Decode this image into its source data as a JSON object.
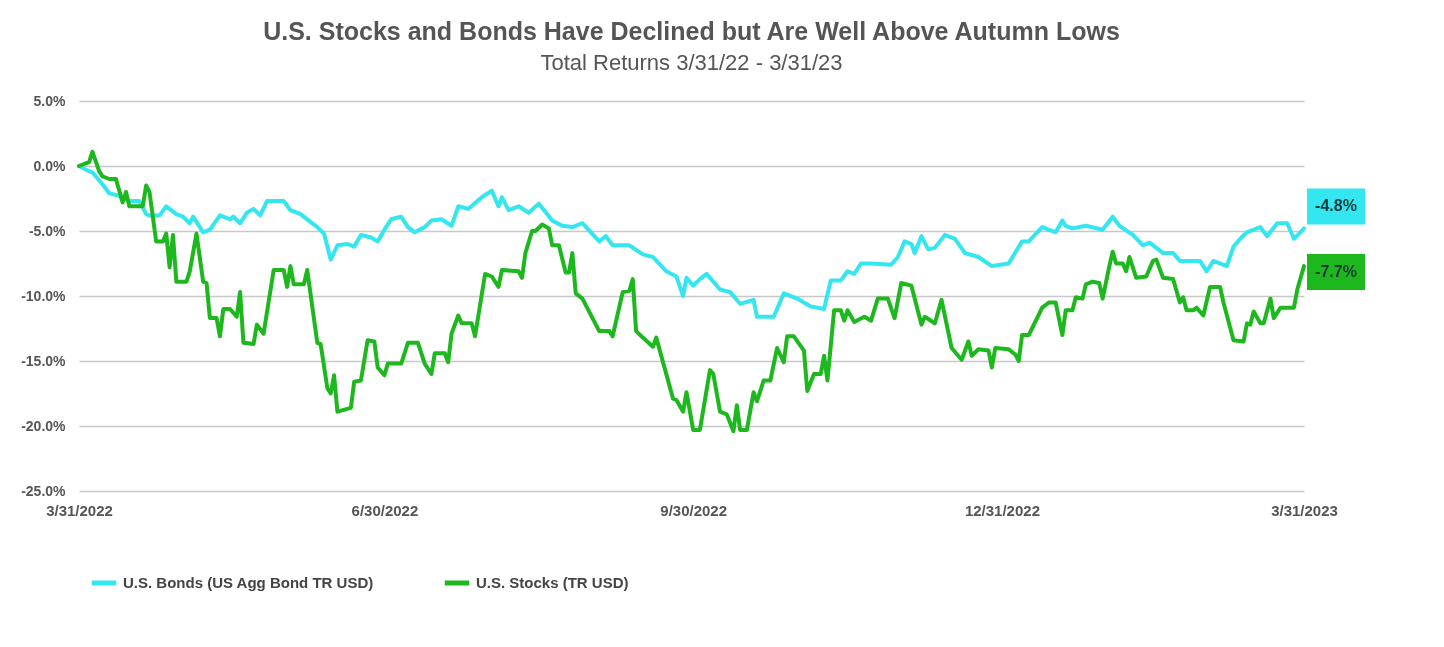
{
  "chart_data": {
    "type": "line",
    "title": "U.S. Stocks and Bonds Have Declined but Are Well Above Autumn Lows",
    "subtitle": "Total Returns 3/31/22 - 3/31/23",
    "xlim": [
      "2022-03-31",
      "2023-03-31"
    ],
    "xticks": [
      {
        "value": "2022-03-31",
        "label": "3/31/2022"
      },
      {
        "value": "2022-06-30",
        "label": "6/30/2022"
      },
      {
        "value": "2022-09-30",
        "label": "9/30/2022"
      },
      {
        "value": "2022-12-31",
        "label": "12/31/2022"
      },
      {
        "value": "2023-03-31",
        "label": "3/31/2023"
      }
    ],
    "ylim": [
      -25,
      5
    ],
    "yticks": [
      {
        "value": -25,
        "label": "-25.0%"
      },
      {
        "value": -20,
        "label": "-20.0%"
      },
      {
        "value": -15,
        "label": "-15.0%"
      },
      {
        "value": -10,
        "label": "-10.0%"
      },
      {
        "value": -5,
        "label": "-5.0%"
      },
      {
        "value": 0,
        "label": "0.0%"
      },
      {
        "value": 5,
        "label": "5.0%"
      }
    ],
    "grid": "y",
    "legend": "bottom",
    "annotations": [
      {
        "text": "-4.8%",
        "x": "2023-03-31",
        "y": -4.8
      },
      {
        "text": "-7.7%",
        "x": "2023-03-31",
        "y": -7.7
      }
    ],
    "series": [
      {
        "name": "U.S. Bonds (US Agg Bond TR USD)",
        "color": "#33e6f0",
        "x": [
          "2022-03-31",
          "2022-04-03",
          "2022-04-04",
          "2022-04-07",
          "2022-04-09",
          "2022-04-12",
          "2022-04-15",
          "2022-04-18",
          "2022-04-20",
          "2022-04-21",
          "2022-04-24",
          "2022-04-26",
          "2022-04-29",
          "2022-05-01",
          "2022-05-03",
          "2022-05-04",
          "2022-05-07",
          "2022-05-09",
          "2022-05-12",
          "2022-05-15",
          "2022-05-16",
          "2022-05-18",
          "2022-05-20",
          "2022-05-22",
          "2022-05-24",
          "2022-05-26",
          "2022-05-31",
          "2022-06-02",
          "2022-06-05",
          "2022-06-07",
          "2022-06-10",
          "2022-06-12",
          "2022-06-14",
          "2022-06-16",
          "2022-06-19",
          "2022-06-21",
          "2022-06-23",
          "2022-06-26",
          "2022-06-28",
          "2022-06-30",
          "2022-07-02",
          "2022-07-05",
          "2022-07-07",
          "2022-07-09",
          "2022-07-12",
          "2022-07-14",
          "2022-07-17",
          "2022-07-20",
          "2022-07-22",
          "2022-07-25",
          "2022-07-29",
          "2022-08-01",
          "2022-08-03",
          "2022-08-04",
          "2022-08-06",
          "2022-08-09",
          "2022-08-12",
          "2022-08-15",
          "2022-08-19",
          "2022-08-22",
          "2022-08-25",
          "2022-08-28",
          "2022-09-02",
          "2022-09-04",
          "2022-09-06",
          "2022-09-11",
          "2022-09-15",
          "2022-09-18",
          "2022-09-22",
          "2022-09-25",
          "2022-09-27",
          "2022-09-28",
          "2022-09-30",
          "2022-10-02",
          "2022-10-04",
          "2022-10-08",
          "2022-10-11",
          "2022-10-14",
          "2022-10-18",
          "2022-10-19",
          "2022-10-24",
          "2022-10-27",
          "2022-10-31",
          "2022-11-04",
          "2022-11-08",
          "2022-11-10",
          "2022-11-13",
          "2022-11-15",
          "2022-11-17",
          "2022-11-19",
          "2022-11-22",
          "2022-11-28",
          "2022-11-30",
          "2022-12-02",
          "2022-12-04",
          "2022-12-05",
          "2022-12-07",
          "2022-12-09",
          "2022-12-11",
          "2022-12-14",
          "2022-12-17",
          "2022-12-20",
          "2022-12-24",
          "2022-12-28",
          "2023-01-02",
          "2023-01-06",
          "2023-01-08",
          "2023-01-12",
          "2023-01-16",
          "2023-01-18",
          "2023-01-19",
          "2023-01-21",
          "2023-01-25",
          "2023-01-30",
          "2023-02-02",
          "2023-02-04",
          "2023-02-08",
          "2023-02-11",
          "2023-02-13",
          "2023-02-17",
          "2023-02-20",
          "2023-02-22",
          "2023-02-28",
          "2023-03-02",
          "2023-03-04",
          "2023-03-08",
          "2023-03-10",
          "2023-03-12",
          "2023-03-14",
          "2023-03-18",
          "2023-03-20",
          "2023-03-23",
          "2023-03-26",
          "2023-03-28",
          "2023-03-31"
        ],
        "values": [
          0,
          -0.4,
          -0.5,
          -1.4,
          -2.1,
          -2.3,
          -2.7,
          -2.7,
          -3.7,
          -3.8,
          -3.8,
          -3.1,
          -3.7,
          -3.9,
          -4.4,
          -3.9,
          -5.1,
          -4.9,
          -3.8,
          -4.1,
          -3.9,
          -4.4,
          -3.6,
          -3.3,
          -3.8,
          -2.7,
          -2.7,
          -3.4,
          -3.7,
          -4.1,
          -4.7,
          -5.2,
          -7.2,
          -6.1,
          -6.0,
          -6.2,
          -5.3,
          -5.5,
          -5.8,
          -4.9,
          -4.1,
          -3.9,
          -4.7,
          -5.1,
          -4.7,
          -4.2,
          -4.1,
          -4.6,
          -3.1,
          -3.3,
          -2.4,
          -1.9,
          -3.1,
          -2.4,
          -3.4,
          -3.1,
          -3.6,
          -2.9,
          -4.2,
          -4.6,
          -4.7,
          -4.4,
          -5.8,
          -5.4,
          -6.1,
          -6.1,
          -6.8,
          -7.0,
          -8.1,
          -8.5,
          -10.0,
          -8.6,
          -9.2,
          -8.7,
          -8.3,
          -9.5,
          -9.7,
          -10.6,
          -10.3,
          -11.6,
          -11.6,
          -9.8,
          -10.2,
          -10.8,
          -11.0,
          -8.8,
          -8.8,
          -8.1,
          -8.3,
          -7.5,
          -7.5,
          -7.6,
          -7.0,
          -5.8,
          -6.0,
          -6.7,
          -5.4,
          -6.4,
          -6.3,
          -5.3,
          -5.6,
          -6.7,
          -7.0,
          -7.7,
          -7.5,
          -5.8,
          -5.8,
          -4.7,
          -5.1,
          -4.2,
          -4.6,
          -4.8,
          -4.6,
          -4.9,
          -3.9,
          -4.6,
          -5.3,
          -6.1,
          -5.9,
          -6.7,
          -6.7,
          -7.3,
          -7.3,
          -8.1,
          -7.3,
          -7.7,
          -6.2,
          -5.6,
          -5.1,
          -4.7,
          -5.4,
          -4.4,
          -4.4,
          -5.6,
          -4.8
        ]
      },
      {
        "name": "U.S. Stocks (TR USD)",
        "color": "#1db81d",
        "x": [
          "2022-03-31",
          "2022-04-02",
          "2022-04-03",
          "2022-04-04",
          "2022-04-06",
          "2022-04-07",
          "2022-04-09",
          "2022-04-11",
          "2022-04-13",
          "2022-04-14",
          "2022-04-15",
          "2022-04-19",
          "2022-04-20",
          "2022-04-21",
          "2022-04-23",
          "2022-04-25",
          "2022-04-26",
          "2022-04-27",
          "2022-04-28",
          "2022-04-29",
          "2022-05-02",
          "2022-05-03",
          "2022-05-05",
          "2022-05-07",
          "2022-05-08",
          "2022-05-09",
          "2022-05-11",
          "2022-05-12",
          "2022-05-13",
          "2022-05-15",
          "2022-05-17",
          "2022-05-18",
          "2022-05-19",
          "2022-05-22",
          "2022-05-23",
          "2022-05-25",
          "2022-05-28",
          "2022-05-31",
          "2022-06-01",
          "2022-06-02",
          "2022-06-03",
          "2022-06-06",
          "2022-06-07",
          "2022-06-10",
          "2022-06-11",
          "2022-06-13",
          "2022-06-14",
          "2022-06-15",
          "2022-06-16",
          "2022-06-20",
          "2022-06-21",
          "2022-06-23",
          "2022-06-25",
          "2022-06-27",
          "2022-06-28",
          "2022-06-30",
          "2022-07-01",
          "2022-07-05",
          "2022-07-07",
          "2022-07-10",
          "2022-07-12",
          "2022-07-14",
          "2022-07-15",
          "2022-07-18",
          "2022-07-19",
          "2022-07-20",
          "2022-07-22",
          "2022-07-23",
          "2022-07-26",
          "2022-07-27",
          "2022-07-30",
          "2022-08-01",
          "2022-08-03",
          "2022-08-04",
          "2022-08-09",
          "2022-08-10",
          "2022-08-11",
          "2022-08-13",
          "2022-08-14",
          "2022-08-16",
          "2022-08-18",
          "2022-08-19",
          "2022-08-21",
          "2022-08-23",
          "2022-08-24",
          "2022-08-25",
          "2022-08-26",
          "2022-08-28",
          "2022-08-31",
          "2022-09-02",
          "2022-09-05",
          "2022-09-06",
          "2022-09-09",
          "2022-09-11",
          "2022-09-12",
          "2022-09-13",
          "2022-09-15",
          "2022-09-18",
          "2022-09-19",
          "2022-09-24",
          "2022-09-25",
          "2022-09-27",
          "2022-09-28",
          "2022-09-30",
          "2022-10-02",
          "2022-10-05",
          "2022-10-06",
          "2022-10-08",
          "2022-10-10",
          "2022-10-12",
          "2022-10-13",
          "2022-10-14",
          "2022-10-16",
          "2022-10-18",
          "2022-10-19",
          "2022-10-21",
          "2022-10-23",
          "2022-10-25",
          "2022-10-27",
          "2022-10-28",
          "2022-10-30",
          "2022-11-02",
          "2022-11-03",
          "2022-11-05",
          "2022-11-07",
          "2022-11-08",
          "2022-11-09",
          "2022-11-11",
          "2022-11-13",
          "2022-11-14",
          "2022-11-15",
          "2022-11-17",
          "2022-11-20",
          "2022-11-22",
          "2022-11-24",
          "2022-11-27",
          "2022-11-29",
          "2022-12-01",
          "2022-12-04",
          "2022-12-07",
          "2022-12-08",
          "2022-12-11",
          "2022-12-13",
          "2022-12-16",
          "2022-12-19",
          "2022-12-21",
          "2022-12-22",
          "2022-12-24",
          "2022-12-27",
          "2022-12-28",
          "2022-12-29",
          "2023-01-02",
          "2023-01-04",
          "2023-01-05",
          "2023-01-06",
          "2023-01-08",
          "2023-01-12",
          "2023-01-14",
          "2023-01-16",
          "2023-01-18",
          "2023-01-19",
          "2023-01-21",
          "2023-01-22",
          "2023-01-24",
          "2023-01-25",
          "2023-01-27",
          "2023-01-29",
          "2023-01-30",
          "2023-02-01",
          "2023-02-02",
          "2023-02-03",
          "2023-02-05",
          "2023-02-06",
          "2023-02-07",
          "2023-02-09",
          "2023-02-12",
          "2023-02-14",
          "2023-02-15",
          "2023-02-17",
          "2023-02-20",
          "2023-02-22",
          "2023-02-23",
          "2023-02-24",
          "2023-02-26",
          "2023-02-27",
          "2023-03-01",
          "2023-03-03",
          "2023-03-06",
          "2023-03-07",
          "2023-03-10",
          "2023-03-13",
          "2023-03-14",
          "2023-03-15",
          "2023-03-16",
          "2023-03-18",
          "2023-03-19",
          "2023-03-21",
          "2023-03-22",
          "2023-03-24",
          "2023-03-28",
          "2023-03-29",
          "2023-03-31"
        ],
        "values": [
          0,
          0.2,
          0.3,
          1.1,
          -0.4,
          -0.8,
          -1.0,
          -1.0,
          -2.8,
          -2.0,
          -3.1,
          -3.1,
          -1.5,
          -2.0,
          -5.8,
          -5.8,
          -5.2,
          -7.8,
          -5.3,
          -8.9,
          -8.9,
          -8.1,
          -5.2,
          -8.9,
          -9.0,
          -11.7,
          -11.7,
          -13.1,
          -11.0,
          -11.0,
          -11.6,
          -9.7,
          -13.6,
          -13.7,
          -12.2,
          -12.9,
          -8.0,
          -8.0,
          -9.3,
          -7.7,
          -9.1,
          -9.1,
          -8.0,
          -13.6,
          -13.7,
          -17.1,
          -17.5,
          -16.1,
          -18.9,
          -18.6,
          -16.6,
          -16.5,
          -13.4,
          -13.5,
          -15.5,
          -16.1,
          -15.2,
          -15.2,
          -13.6,
          -13.6,
          -15.2,
          -16.0,
          -14.4,
          -14.4,
          -15.1,
          -12.9,
          -11.5,
          -12.1,
          -12.1,
          -13.1,
          -8.3,
          -8.5,
          -9.3,
          -8.0,
          -8.1,
          -8.6,
          -6.7,
          -5.0,
          -5.0,
          -4.5,
          -4.8,
          -6.1,
          -6.1,
          -8.2,
          -8.2,
          -6.7,
          -9.8,
          -10.2,
          -11.7,
          -12.7,
          -12.7,
          -13.1,
          -9.7,
          -9.6,
          -8.7,
          -12.7,
          -13.2,
          -13.9,
          -13.2,
          -17.9,
          -18.0,
          -18.9,
          -17.4,
          -20.3,
          -20.3,
          -15.7,
          -16.0,
          -18.9,
          -19.1,
          -20.4,
          -18.4,
          -20.3,
          -20.3,
          -17.4,
          -18.1,
          -16.5,
          -16.5,
          -14.0,
          -15.1,
          -13.1,
          -13.1,
          -14.2,
          -17.3,
          -16.0,
          -16.0,
          -14.6,
          -16.5,
          -11.1,
          -11.1,
          -11.9,
          -11.1,
          -12.0,
          -11.6,
          -11.9,
          -10.2,
          -10.2,
          -11.7,
          -9.0,
          -9.2,
          -12.2,
          -11.6,
          -12.1,
          -10.3,
          -14.0,
          -14.9,
          -13.5,
          -14.6,
          -14.1,
          -14.2,
          -15.5,
          -14.0,
          -14.1,
          -14.5,
          -15.0,
          -13.0,
          -13.0,
          -10.9,
          -10.5,
          -10.5,
          -13.0,
          -11.1,
          -11.1,
          -10.1,
          -10.2,
          -9.1,
          -8.9,
          -9.0,
          -10.2,
          -7.7,
          -6.6,
          -7.5,
          -7.5,
          -8.1,
          -7.0,
          -8.6,
          -8.5,
          -7.3,
          -7.2,
          -8.6,
          -8.7,
          -10.5,
          -10.1,
          -11.1,
          -11.1,
          -10.9,
          -11.5,
          -9.3,
          -9.3,
          -10.5,
          -13.4,
          -13.5,
          -12.1,
          -12.2,
          -11.2,
          -12.1,
          -12.1,
          -10.2,
          -11.7,
          -10.9,
          -10.9,
          -9.5,
          -7.7
        ]
      }
    ]
  }
}
